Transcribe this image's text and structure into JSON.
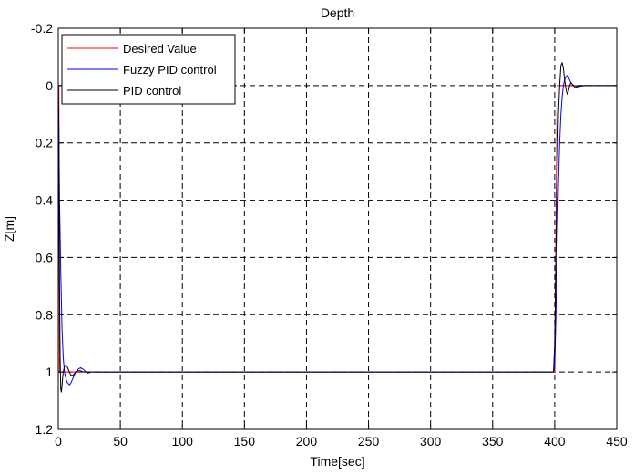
{
  "chart_data": {
    "type": "line",
    "title": "Depth",
    "xlabel": "Time[sec]",
    "ylabel": "Z[m]",
    "xlim": [
      0,
      450
    ],
    "ylim": [
      -0.2,
      1.2
    ],
    "y_reversed": true,
    "grid": true,
    "grid_style": "dashed",
    "legend_position": "top-left",
    "xticks": [
      0,
      50,
      100,
      150,
      200,
      250,
      300,
      350,
      400,
      450
    ],
    "yticks": [
      -0.2,
      0,
      0.2,
      0.4,
      0.6,
      0.8,
      1,
      1.2
    ],
    "xtick_labels": [
      "0",
      "50",
      "100",
      "150",
      "200",
      "250",
      "300",
      "350",
      "400",
      "450"
    ],
    "ytick_labels": [
      "-0.2",
      "0",
      "0.2",
      "0.4",
      "0.6",
      "0.8",
      "1",
      "1.2"
    ],
    "series": [
      {
        "name": "Desired Value",
        "color": "#ff0000",
        "x": [
          0,
          0.5,
          1,
          400,
          402,
          430
        ],
        "y": [
          0,
          0,
          1,
          1,
          0,
          0
        ]
      },
      {
        "name": "Fuzzy PID control",
        "color": "#0000ff",
        "x": [
          0,
          0.5,
          1,
          2,
          3,
          4,
          5,
          6,
          7,
          8,
          9,
          10,
          11,
          12,
          14,
          16,
          18,
          20,
          22,
          24,
          26,
          30,
          40,
          100,
          200,
          300,
          399,
          400,
          401,
          402,
          403,
          404,
          405,
          406,
          407,
          408,
          409,
          410,
          411,
          412,
          413,
          414,
          416,
          418,
          420,
          424,
          430,
          450
        ],
        "y": [
          0,
          0.15,
          0.4,
          0.65,
          0.85,
          0.95,
          1.0,
          1.02,
          1.035,
          1.04,
          1.045,
          1.04,
          1.03,
          1.02,
          1.0,
          0.99,
          0.985,
          0.99,
          0.998,
          1.004,
          1.0,
          1.0,
          1.0,
          1.0,
          1.0,
          1.0,
          1.0,
          0.98,
          0.8,
          0.55,
          0.35,
          0.2,
          0.1,
          0.04,
          0.0,
          -0.02,
          -0.03,
          -0.035,
          -0.03,
          -0.02,
          -0.01,
          -0.005,
          0.003,
          0.006,
          0.003,
          0.0,
          0.0,
          0.0
        ]
      },
      {
        "name": "PID control",
        "color": "#000000",
        "x": [
          0,
          0.5,
          1,
          1.5,
          2,
          2.5,
          3,
          3.5,
          4,
          5,
          6,
          7,
          8,
          9,
          10,
          11,
          12,
          14,
          16,
          18,
          20,
          25,
          30,
          100,
          200,
          300,
          399,
          400,
          401,
          402,
          403,
          404,
          405,
          406,
          407,
          408,
          409,
          410,
          411,
          412,
          413,
          414,
          416,
          418,
          420,
          425,
          430,
          450
        ],
        "y": [
          0,
          0.3,
          0.7,
          0.95,
          1.06,
          1.07,
          1.05,
          1.02,
          1.0,
          0.98,
          0.975,
          0.98,
          0.99,
          1.0,
          1.01,
          1.012,
          1.01,
          1.0,
          0.995,
          0.996,
          1.0,
          1.0,
          1.0,
          1.0,
          1.0,
          1.0,
          1.0,
          0.9,
          0.6,
          0.3,
          0.1,
          0.0,
          -0.07,
          -0.08,
          -0.06,
          -0.02,
          0.01,
          0.03,
          0.02,
          0.0,
          -0.01,
          -0.005,
          0.005,
          0.002,
          0.0,
          0.0,
          0.0,
          0.0
        ]
      }
    ]
  }
}
